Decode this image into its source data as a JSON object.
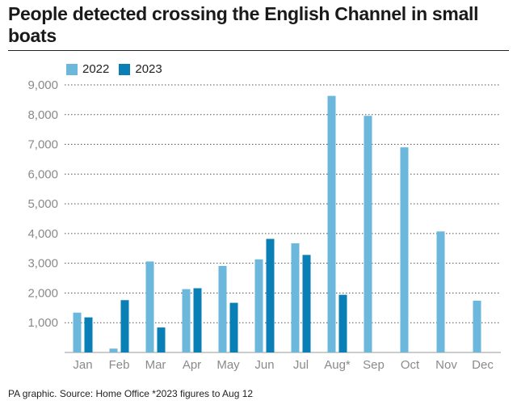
{
  "header": {
    "title": "People detected crossing the English Channel in small boats"
  },
  "legend": {
    "items": [
      {
        "label": "2022",
        "color": "#6bb8dc"
      },
      {
        "label": "2023",
        "color": "#0a7fb5"
      }
    ]
  },
  "footer": {
    "source": "PA graphic. Source: Home Office *2023 figures to Aug 12"
  },
  "chart_data": {
    "type": "bar",
    "title": "People detected crossing the English Channel in small boats",
    "categories": [
      "Jan",
      "Feb",
      "Mar",
      "Apr",
      "May",
      "Jun",
      "Jul",
      "Aug*",
      "Sep",
      "Oct",
      "Nov",
      "Dec"
    ],
    "series": [
      {
        "name": "2022",
        "color": "#6bb8dc",
        "values": [
          1340,
          130,
          3060,
          2130,
          2910,
          3130,
          3670,
          8630,
          7960,
          6900,
          4070,
          1740
        ]
      },
      {
        "name": "2023",
        "color": "#0a7fb5",
        "values": [
          1180,
          1760,
          840,
          2160,
          1670,
          3820,
          3280,
          1940,
          null,
          null,
          null,
          null
        ]
      }
    ],
    "yticks": [
      "1,000",
      "2,000",
      "3,000",
      "4,000",
      "5,000",
      "6,000",
      "7,000",
      "8,000",
      "9,000"
    ],
    "ylim": [
      0,
      9000
    ],
    "grid": true,
    "legend_position": "top-left",
    "xlabel": "",
    "ylabel": ""
  }
}
